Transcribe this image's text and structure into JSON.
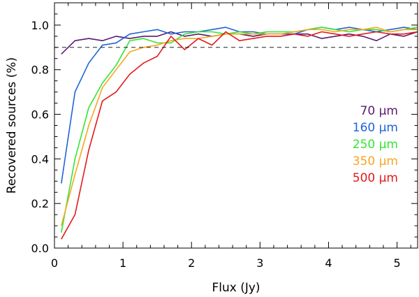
{
  "chart_data": {
    "type": "line",
    "xlabel": "Flux (Jy)",
    "ylabel": "Recovered sources (%)",
    "xlim": [
      0,
      5.3
    ],
    "ylim": [
      0,
      1.1
    ],
    "xticks": [
      0,
      1,
      2,
      3,
      4,
      5
    ],
    "xtick_labels": [
      "0",
      "1",
      "2",
      "3",
      "4",
      "5"
    ],
    "yticks": [
      0.0,
      0.2,
      0.4,
      0.6,
      0.8,
      1.0
    ],
    "ytick_labels": [
      "0.0",
      "0.2",
      "0.4",
      "0.6",
      "0.8",
      "1.0"
    ],
    "reference_line": {
      "y": 0.9,
      "style": "dashed"
    },
    "legend_position": "right",
    "series": [
      {
        "name": "70 µm",
        "color": "#5a1a6e",
        "x": [
          0.1,
          0.3,
          0.5,
          0.7,
          0.9,
          1.1,
          1.3,
          1.5,
          1.7,
          1.9,
          2.1,
          2.3,
          2.5,
          2.7,
          2.9,
          3.1,
          3.3,
          3.5,
          3.7,
          3.9,
          4.1,
          4.3,
          4.5,
          4.7,
          4.9,
          5.1,
          5.3
        ],
        "y": [
          0.87,
          0.93,
          0.94,
          0.93,
          0.95,
          0.94,
          0.95,
          0.95,
          0.97,
          0.95,
          0.96,
          0.95,
          0.96,
          0.96,
          0.95,
          0.96,
          0.96,
          0.96,
          0.96,
          0.94,
          0.95,
          0.96,
          0.95,
          0.93,
          0.96,
          0.95,
          0.97
        ]
      },
      {
        "name": "160 µm",
        "color": "#1f64d8",
        "x": [
          0.1,
          0.3,
          0.5,
          0.7,
          0.9,
          1.1,
          1.3,
          1.5,
          1.7,
          1.9,
          2.1,
          2.3,
          2.5,
          2.7,
          2.9,
          3.1,
          3.3,
          3.5,
          3.7,
          3.9,
          4.1,
          4.3,
          4.5,
          4.7,
          4.9,
          5.1,
          5.3
        ],
        "y": [
          0.29,
          0.7,
          0.83,
          0.91,
          0.92,
          0.96,
          0.97,
          0.98,
          0.96,
          0.97,
          0.97,
          0.98,
          0.99,
          0.97,
          0.97,
          0.96,
          0.96,
          0.96,
          0.98,
          0.99,
          0.98,
          0.99,
          0.98,
          0.97,
          0.98,
          0.99,
          0.98
        ]
      },
      {
        "name": "250 µm",
        "color": "#33e633",
        "x": [
          0.1,
          0.3,
          0.5,
          0.7,
          0.9,
          1.1,
          1.3,
          1.5,
          1.7,
          1.9,
          2.1,
          2.3,
          2.5,
          2.7,
          2.9,
          3.1,
          3.3,
          3.5,
          3.7,
          3.9,
          4.1,
          4.3,
          4.5,
          4.7,
          4.9,
          5.1,
          5.3
        ],
        "y": [
          0.07,
          0.4,
          0.63,
          0.74,
          0.82,
          0.93,
          0.94,
          0.92,
          0.92,
          0.96,
          0.97,
          0.97,
          0.96,
          0.97,
          0.96,
          0.97,
          0.97,
          0.97,
          0.98,
          0.99,
          0.98,
          0.97,
          0.98,
          0.98,
          0.97,
          0.98,
          0.99
        ]
      },
      {
        "name": "350 µm",
        "color": "#f5a623",
        "x": [
          0.1,
          0.3,
          0.5,
          0.7,
          0.9,
          1.1,
          1.3,
          1.5,
          1.7,
          1.9,
          2.1,
          2.3,
          2.5,
          2.7,
          2.9,
          3.1,
          3.3,
          3.5,
          3.7,
          3.9,
          4.1,
          4.3,
          4.5,
          4.7,
          4.9,
          5.1,
          5.3
        ],
        "y": [
          0.1,
          0.33,
          0.55,
          0.72,
          0.8,
          0.88,
          0.9,
          0.91,
          0.93,
          0.94,
          0.94,
          0.95,
          0.96,
          0.96,
          0.96,
          0.96,
          0.96,
          0.97,
          0.98,
          0.98,
          0.97,
          0.98,
          0.98,
          0.99,
          0.97,
          0.98,
          0.98
        ]
      },
      {
        "name": "500 µm",
        "color": "#e31a1c",
        "x": [
          0.1,
          0.3,
          0.5,
          0.7,
          0.9,
          1.1,
          1.3,
          1.5,
          1.7,
          1.9,
          2.1,
          2.3,
          2.5,
          2.7,
          2.9,
          3.1,
          3.3,
          3.5,
          3.7,
          3.9,
          4.1,
          4.3,
          4.5,
          4.7,
          4.9,
          5.1,
          5.3
        ],
        "y": [
          0.04,
          0.15,
          0.44,
          0.66,
          0.7,
          0.78,
          0.83,
          0.86,
          0.95,
          0.89,
          0.94,
          0.91,
          0.97,
          0.93,
          0.94,
          0.95,
          0.95,
          0.96,
          0.95,
          0.97,
          0.96,
          0.95,
          0.96,
          0.97,
          0.96,
          0.96,
          0.97
        ]
      }
    ]
  }
}
